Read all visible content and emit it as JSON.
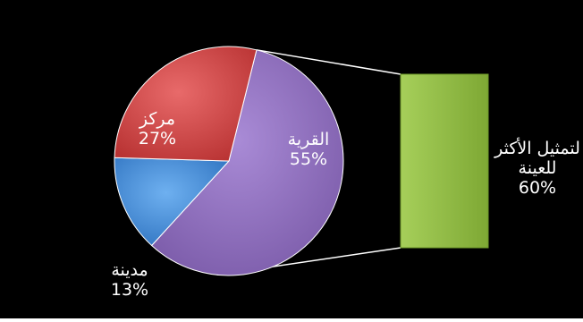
{
  "chart_data": {
    "type": "pie",
    "subtype": "bar-of-pie",
    "slices": [
      {
        "label": "القرية",
        "value": 55,
        "display": "55%",
        "color": "#8B6BB8"
      },
      {
        "label": "مدينة",
        "value": 13,
        "display": "13%",
        "color": "#4A8FD8"
      },
      {
        "label": "مركز",
        "value": 27,
        "display": "27%",
        "color": "#D04A4A"
      }
    ],
    "secondary_bar": {
      "label_line1": "لتمثيل الأكثر",
      "label_line2": "للعينة",
      "value": 60,
      "display": "60%",
      "color": "#8DB83C"
    },
    "background": "#000000",
    "connector_color": "#ffffff"
  }
}
